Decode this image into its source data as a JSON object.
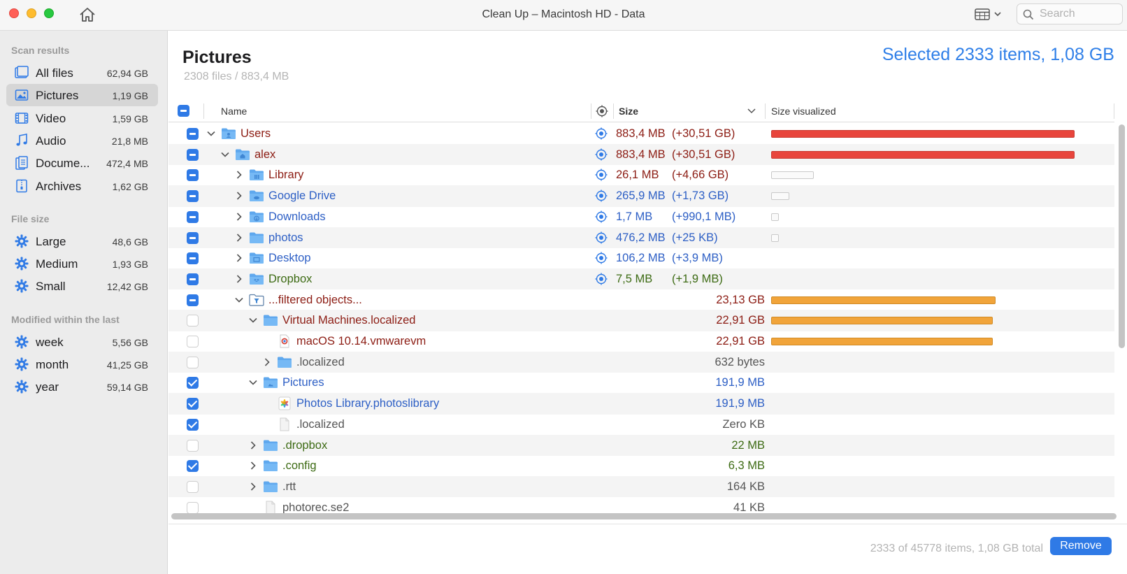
{
  "window": {
    "title": "Clean Up – Macintosh HD - Data"
  },
  "search": {
    "placeholder": "Search"
  },
  "sidebar": {
    "sections": [
      {
        "title": "Scan results",
        "items": [
          {
            "label": "All files",
            "size": "62,94 GB",
            "icon": "all-files-icon"
          },
          {
            "label": "Pictures",
            "size": "1,19 GB",
            "icon": "pictures-icon",
            "selected": true
          },
          {
            "label": "Video",
            "size": "1,59 GB",
            "icon": "video-icon"
          },
          {
            "label": "Audio",
            "size": "21,8 MB",
            "icon": "audio-icon"
          },
          {
            "label": "Docume...",
            "size": "472,4 MB",
            "icon": "documents-icon"
          },
          {
            "label": "Archives",
            "size": "1,62 GB",
            "icon": "archives-icon"
          }
        ]
      },
      {
        "title": "File size",
        "items": [
          {
            "label": "Large",
            "size": "48,6 GB",
            "icon": "gear-icon"
          },
          {
            "label": "Medium",
            "size": "1,93 GB",
            "icon": "gear-icon"
          },
          {
            "label": "Small",
            "size": "12,42 GB",
            "icon": "gear-icon"
          }
        ]
      },
      {
        "title": "Modified within the last",
        "items": [
          {
            "label": "week",
            "size": "5,56 GB",
            "icon": "gear-icon"
          },
          {
            "label": "month",
            "size": "41,25 GB",
            "icon": "gear-icon"
          },
          {
            "label": "year",
            "size": "59,14 GB",
            "icon": "gear-icon"
          }
        ]
      }
    ]
  },
  "main": {
    "title": "Pictures",
    "subtitle": "2308 files / 883,4 MB",
    "selected_summary": "Selected 2333 items, 1,08 GB",
    "columns": {
      "name": "Name",
      "size": "Size",
      "visualized": "Size visualized"
    },
    "rows": [
      {
        "name": "Users",
        "size": "883,4 MB",
        "delta": "(+30,51 GB)",
        "depth": 0,
        "chevron": "down",
        "check": "mixed",
        "color": "darkred",
        "icon": "folder-user",
        "target": true,
        "bar": {
          "type": "red",
          "fraction": 1.0
        }
      },
      {
        "name": "alex",
        "size": "883,4 MB",
        "delta": "(+30,51 GB)",
        "depth": 1,
        "chevron": "down",
        "check": "mixed",
        "color": "darkred",
        "icon": "folder-home",
        "target": true,
        "bar": {
          "type": "red",
          "fraction": 1.0
        }
      },
      {
        "name": "Library",
        "size": "26,1 MB",
        "delta": "(+4,66 GB)",
        "depth": 2,
        "chevron": "right",
        "check": "mixed",
        "color": "darkred",
        "icon": "folder-lib",
        "target": true,
        "bar": {
          "type": "empty",
          "fraction": 0.14
        }
      },
      {
        "name": "Google Drive",
        "size": "265,9 MB",
        "delta": "(+1,73 GB)",
        "depth": 2,
        "chevron": "right",
        "check": "mixed",
        "color": "blue",
        "icon": "folder-cloud",
        "target": true,
        "bar": {
          "type": "empty",
          "fraction": 0.06
        }
      },
      {
        "name": "Downloads",
        "size": "1,7 MB",
        "delta": "(+990,1 MB)",
        "depth": 2,
        "chevron": "right",
        "check": "mixed",
        "color": "blue",
        "icon": "folder-download",
        "target": true,
        "bar": {
          "type": "empty",
          "fraction": 0.025
        }
      },
      {
        "name": "photos",
        "size": "476,2 MB",
        "delta": "(+25 KB)",
        "depth": 2,
        "chevron": "right",
        "check": "mixed",
        "color": "blue",
        "icon": "folder",
        "target": true,
        "bar": {
          "type": "empty",
          "fraction": 0.025
        }
      },
      {
        "name": "Desktop",
        "size": "106,2 MB",
        "delta": "(+3,9 MB)",
        "depth": 2,
        "chevron": "right",
        "check": "mixed",
        "color": "blue",
        "icon": "folder-desktop",
        "target": true,
        "bar": null
      },
      {
        "name": "Dropbox",
        "size": "7,5 MB",
        "delta": "(+1,9 MB)",
        "depth": 2,
        "chevron": "right",
        "check": "mixed",
        "color": "green",
        "icon": "folder-dropbox",
        "target": true,
        "bar": null
      },
      {
        "name": "...filtered objects...",
        "size": "23,13 GB",
        "delta": "",
        "depth": 2,
        "chevron": "down",
        "check": "mixed",
        "color": "darkred",
        "icon": "filter-folder",
        "target": false,
        "bar": {
          "type": "orange",
          "fraction": 0.74
        }
      },
      {
        "name": "Virtual Machines.localized",
        "size": "22,91 GB",
        "delta": "",
        "depth": 3,
        "chevron": "down",
        "check": "unchecked",
        "color": "darkred",
        "icon": "folder",
        "target": false,
        "bar": {
          "type": "orange",
          "fraction": 0.73
        }
      },
      {
        "name": "macOS 10.14.vmwarevm",
        "size": "22,91 GB",
        "delta": "",
        "depth": 4,
        "chevron": "none",
        "check": "unchecked",
        "color": "darkred",
        "icon": "vm-file",
        "target": false,
        "bar": {
          "type": "orange",
          "fraction": 0.73
        }
      },
      {
        "name": ".localized",
        "size": "632 bytes",
        "delta": "",
        "depth": 4,
        "chevron": "right",
        "check": "unchecked",
        "color": "gray",
        "icon": "folder",
        "target": false,
        "bar": null
      },
      {
        "name": "Pictures",
        "size": "191,9 MB",
        "delta": "",
        "depth": 3,
        "chevron": "down",
        "check": "checked",
        "color": "blue",
        "icon": "folder-pictures",
        "target": false,
        "bar": null
      },
      {
        "name": "Photos Library.photoslibrary",
        "size": "191,9 MB",
        "delta": "",
        "depth": 4,
        "chevron": "none",
        "check": "checked",
        "color": "blue",
        "icon": "photos-file",
        "target": false,
        "bar": null
      },
      {
        "name": ".localized",
        "size": "Zero KB",
        "delta": "",
        "depth": 4,
        "chevron": "none",
        "check": "checked",
        "color": "gray",
        "icon": "doc-file",
        "target": false,
        "bar": null
      },
      {
        "name": ".dropbox",
        "size": "22 MB",
        "delta": "",
        "depth": 3,
        "chevron": "right",
        "check": "unchecked",
        "color": "green",
        "icon": "folder",
        "target": false,
        "bar": null
      },
      {
        "name": ".config",
        "size": "6,3 MB",
        "delta": "",
        "depth": 3,
        "chevron": "right",
        "check": "checked",
        "color": "green",
        "icon": "folder",
        "target": false,
        "bar": null
      },
      {
        "name": ".rtt",
        "size": "164 KB",
        "delta": "",
        "depth": 3,
        "chevron": "right",
        "check": "unchecked",
        "color": "gray",
        "icon": "folder",
        "target": false,
        "bar": null
      },
      {
        "name": "photorec.se2",
        "size": "41 KB",
        "delta": "",
        "depth": 3,
        "chevron": "none",
        "check": "unchecked",
        "color": "gray",
        "icon": "doc-file",
        "target": false,
        "bar": null
      }
    ]
  },
  "footer": {
    "summary": "2333 of 45778 items, 1,08 GB total",
    "remove_label": "Remove"
  },
  "colors": {
    "accent": "#2f7ae6",
    "bar_red": "#e8453c",
    "bar_orange": "#f1a43a"
  }
}
